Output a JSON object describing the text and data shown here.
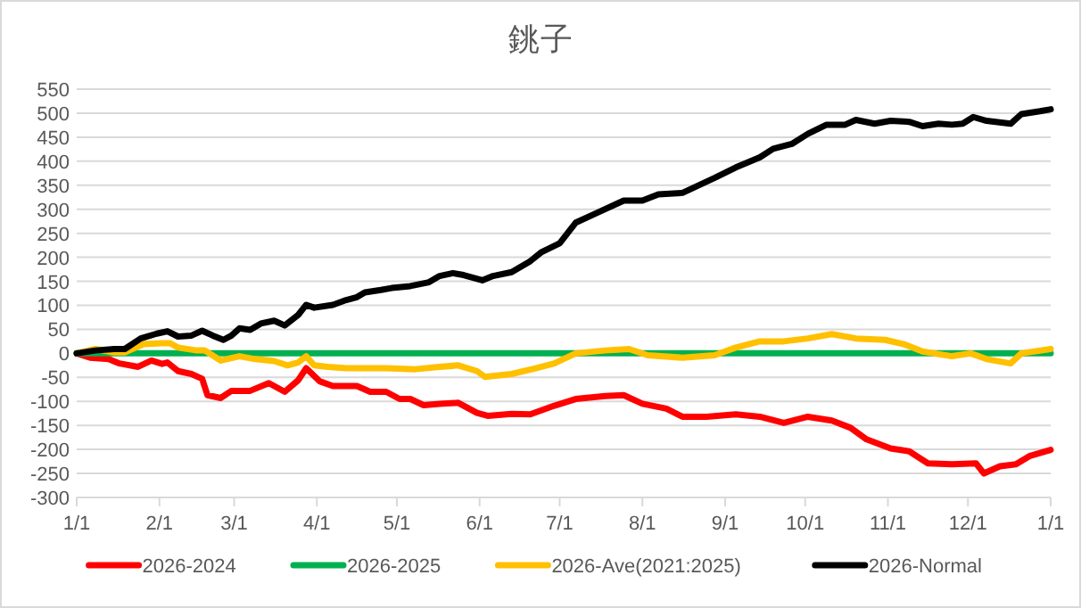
{
  "chart_data": {
    "type": "line",
    "title": "銚子",
    "legend": "bottom",
    "grid": "y",
    "marker": "none",
    "line_style": "solid",
    "xlim": [
      "2026-01-01",
      "2027-01-01"
    ],
    "xticks": [
      {
        "value": "2026-01-01",
        "label": "1/1"
      },
      {
        "value": "2026-02-01",
        "label": "2/1"
      },
      {
        "value": "2026-03-01",
        "label": "3/1"
      },
      {
        "value": "2026-04-01",
        "label": "4/1"
      },
      {
        "value": "2026-05-01",
        "label": "5/1"
      },
      {
        "value": "2026-06-01",
        "label": "6/1"
      },
      {
        "value": "2026-07-01",
        "label": "7/1"
      },
      {
        "value": "2026-08-01",
        "label": "8/1"
      },
      {
        "value": "2026-09-01",
        "label": "9/1"
      },
      {
        "value": "2026-10-01",
        "label": "10/1"
      },
      {
        "value": "2026-11-01",
        "label": "11/1"
      },
      {
        "value": "2026-12-01",
        "label": "12/1"
      },
      {
        "value": "2027-01-01",
        "label": "1/1"
      }
    ],
    "ylim": [
      -300,
      550
    ],
    "yticks": [
      -300,
      -250,
      -200,
      -150,
      -100,
      -50,
      0,
      50,
      100,
      150,
      200,
      250,
      300,
      350,
      400,
      450,
      500,
      550
    ],
    "series": [
      {
        "name": "2026-2024",
        "color": "#ff0000",
        "x": [
          "2026-01-01",
          "2026-01-06",
          "2026-01-13",
          "2026-01-17",
          "2026-01-24",
          "2026-01-29",
          "2026-02-02",
          "2026-02-04",
          "2026-02-08",
          "2026-02-13",
          "2026-02-17",
          "2026-02-19",
          "2026-02-24",
          "2026-02-28",
          "2026-03-07",
          "2026-03-14",
          "2026-03-20",
          "2026-03-25",
          "2026-03-28",
          "2026-04-02",
          "2026-04-07",
          "2026-04-16",
          "2026-04-21",
          "2026-04-27",
          "2026-05-02",
          "2026-05-06",
          "2026-05-11",
          "2026-05-17",
          "2026-05-24",
          "2026-05-31",
          "2026-06-04",
          "2026-06-13",
          "2026-06-20",
          "2026-06-29",
          "2026-07-07",
          "2026-07-18",
          "2026-07-25",
          "2026-08-01",
          "2026-08-10",
          "2026-08-16",
          "2026-08-25",
          "2026-09-05",
          "2026-09-14",
          "2026-09-23",
          "2026-10-02",
          "2026-10-11",
          "2026-10-18",
          "2026-10-24",
          "2026-11-02",
          "2026-11-09",
          "2026-11-16",
          "2026-11-25",
          "2026-12-04",
          "2026-12-07",
          "2026-12-13",
          "2026-12-19",
          "2026-12-24",
          "2027-01-01"
        ],
        "values": [
          0,
          -9,
          -12,
          -21,
          -28,
          -15,
          -22,
          -19,
          -37,
          -43,
          -53,
          -87,
          -93,
          -78,
          -78,
          -62,
          -80,
          -56,
          -31,
          -58,
          -68,
          -68,
          -80,
          -80,
          -95,
          -95,
          -108,
          -105,
          -103,
          -124,
          -130,
          -126,
          -127,
          -109,
          -95,
          -89,
          -87,
          -105,
          -115,
          -132,
          -132,
          -127,
          -132,
          -145,
          -132,
          -140,
          -155,
          -179,
          -198,
          -204,
          -229,
          -231,
          -229,
          -250,
          -235,
          -231,
          -214,
          -201
        ]
      },
      {
        "name": "2026-2025",
        "color": "#00b050",
        "x": [
          "2026-01-01",
          "2027-01-01"
        ],
        "values": [
          0,
          0
        ]
      },
      {
        "name": "2026-Ave(2021:2025)",
        "color": "#ffc000",
        "x": [
          "2026-01-01",
          "2026-01-08",
          "2026-01-15",
          "2026-01-19",
          "2026-01-26",
          "2026-02-02",
          "2026-02-05",
          "2026-02-08",
          "2026-02-15",
          "2026-02-18",
          "2026-02-24",
          "2026-03-03",
          "2026-03-09",
          "2026-03-16",
          "2026-03-21",
          "2026-03-25",
          "2026-03-28",
          "2026-03-31",
          "2026-04-05",
          "2026-04-12",
          "2026-04-21",
          "2026-04-27",
          "2026-05-08",
          "2026-05-17",
          "2026-05-24",
          "2026-05-31",
          "2026-06-03",
          "2026-06-13",
          "2026-06-22",
          "2026-06-29",
          "2026-07-07",
          "2026-07-18",
          "2026-07-27",
          "2026-08-03",
          "2026-08-16",
          "2026-08-28",
          "2026-09-05",
          "2026-09-14",
          "2026-09-23",
          "2026-10-02",
          "2026-10-11",
          "2026-10-20",
          "2026-10-31",
          "2026-11-07",
          "2026-11-14",
          "2026-11-25",
          "2026-12-02",
          "2026-12-08",
          "2026-12-17",
          "2026-12-21",
          "2027-01-01"
        ],
        "values": [
          0,
          9,
          2,
          2,
          19,
          21,
          21,
          12,
          6,
          6,
          -15,
          -6,
          -12,
          -16,
          -25,
          -19,
          -6,
          -25,
          -28,
          -31,
          -31,
          -31,
          -33,
          -28,
          -25,
          -37,
          -49,
          -43,
          -31,
          -21,
          0,
          6,
          9,
          -4,
          -9,
          -4,
          12,
          25,
          25,
          31,
          40,
          31,
          28,
          19,
          4,
          -6,
          0,
          -12,
          -21,
          0,
          9
        ]
      },
      {
        "name": "2026-Normal",
        "color": "#000000",
        "x": [
          "2026-01-01",
          "2026-01-08",
          "2026-01-15",
          "2026-01-19",
          "2026-01-25",
          "2026-01-31",
          "2026-02-04",
          "2026-02-08",
          "2026-02-13",
          "2026-02-17",
          "2026-02-21",
          "2026-02-25",
          "2026-02-28",
          "2026-03-03",
          "2026-03-07",
          "2026-03-11",
          "2026-03-16",
          "2026-03-20",
          "2026-03-25",
          "2026-03-28",
          "2026-03-31",
          "2026-04-07",
          "2026-04-12",
          "2026-04-16",
          "2026-04-19",
          "2026-04-25",
          "2026-04-29",
          "2026-05-06",
          "2026-05-13",
          "2026-05-17",
          "2026-05-22",
          "2026-05-26",
          "2026-06-02",
          "2026-06-06",
          "2026-06-13",
          "2026-06-20",
          "2026-06-24",
          "2026-07-01",
          "2026-07-07",
          "2026-07-14",
          "2026-07-25",
          "2026-08-01",
          "2026-08-07",
          "2026-08-16",
          "2026-08-28",
          "2026-09-05",
          "2026-09-14",
          "2026-09-19",
          "2026-09-26",
          "2026-10-02",
          "2026-10-09",
          "2026-10-16",
          "2026-10-20",
          "2026-10-27",
          "2026-11-02",
          "2026-11-09",
          "2026-11-14",
          "2026-11-20",
          "2026-11-25",
          "2026-11-29",
          "2026-12-03",
          "2026-12-08",
          "2026-12-17",
          "2026-12-21",
          "2026-12-28",
          "2027-01-01"
        ],
        "values": [
          0,
          6,
          9,
          9,
          31,
          41,
          46,
          35,
          37,
          47,
          37,
          28,
          37,
          52,
          49,
          62,
          68,
          58,
          80,
          101,
          95,
          101,
          111,
          117,
          127,
          132,
          136,
          140,
          148,
          161,
          167,
          163,
          152,
          161,
          169,
          192,
          210,
          229,
          272,
          290,
          318,
          318,
          331,
          334,
          365,
          387,
          408,
          426,
          436,
          457,
          476,
          476,
          486,
          478,
          484,
          482,
          473,
          478,
          476,
          478,
          492,
          484,
          478,
          498,
          504,
          508
        ]
      }
    ]
  }
}
